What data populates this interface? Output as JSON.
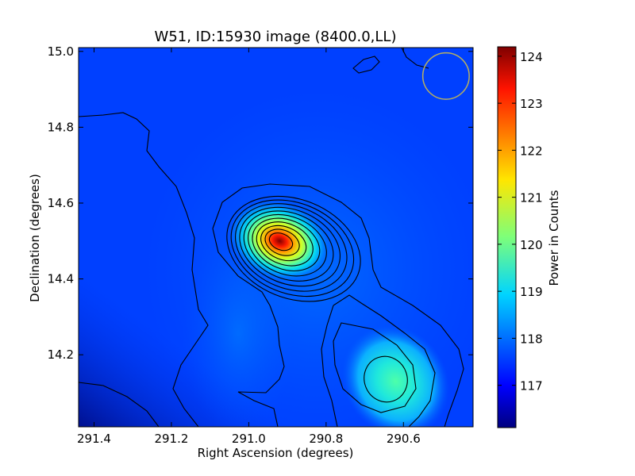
{
  "chart_data": {
    "type": "heatmap",
    "title": "W51, ID:15930 image (8400.0,LL)",
    "xlabel": "Right Ascension (degrees)",
    "ylabel": "Declination (degrees)",
    "xlim": [
      291.44,
      290.42
    ],
    "ylim": [
      14.01,
      15.01
    ],
    "x_ticks": [
      291.4,
      291.2,
      291.0,
      290.8,
      290.6
    ],
    "x_tick_labels": [
      "291.4",
      "291.2",
      "291.0",
      "290.8",
      "290.6"
    ],
    "y_ticks": [
      14.2,
      14.4,
      14.6,
      14.8,
      15.0
    ],
    "y_tick_labels": [
      "14.2",
      "14.4",
      "14.6",
      "14.8",
      "15.0"
    ],
    "colorbar": {
      "label": "Power in Counts",
      "range": [
        116.1,
        124.2
      ],
      "ticks": [
        117,
        118,
        119,
        120,
        121,
        122,
        123,
        124
      ],
      "tick_labels": [
        "117",
        "118",
        "119",
        "120",
        "121",
        "122",
        "123",
        "124"
      ],
      "colormap": "jet"
    },
    "sources": [
      {
        "ra": 290.92,
        "dec": 14.5,
        "peak": 124.2,
        "sigma_ra": 0.085,
        "sigma_dec": 0.065
      },
      {
        "ra": 290.62,
        "dec": 14.13,
        "peak": 119.6,
        "sigma_ra": 0.11,
        "sigma_dec": 0.11
      }
    ],
    "background_level": 117.0,
    "contours_drawn": true,
    "beam": {
      "ra": 290.49,
      "dec": 14.935,
      "radius_deg": 0.06,
      "color": "#b8b060"
    },
    "grid": false
  }
}
